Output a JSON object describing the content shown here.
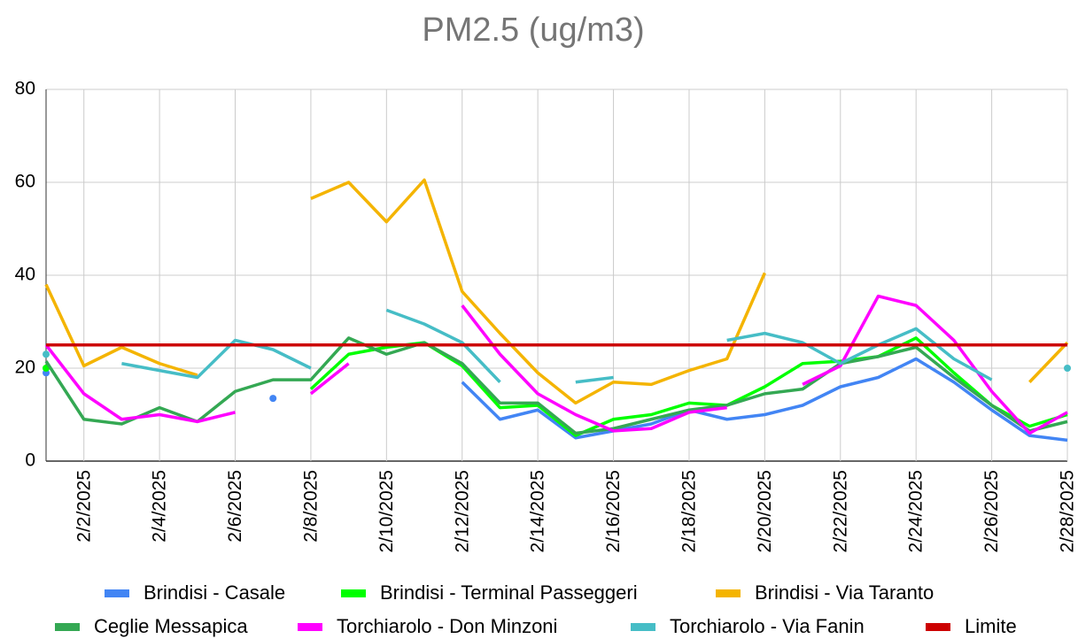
{
  "chart_data": {
    "type": "line",
    "title": "PM2.5 (ug/m3)",
    "categories": [
      null,
      "2/2/2025",
      null,
      "2/4/2025",
      null,
      "2/6/2025",
      null,
      "2/8/2025",
      null,
      "2/10/2025",
      null,
      "2/12/2025",
      null,
      "2/14/2025",
      null,
      "2/16/2025",
      null,
      "2/18/2025",
      null,
      "2/20/2025",
      null,
      "2/22/2025",
      null,
      "2/24/2025",
      null,
      "2/26/2025",
      null,
      "2/28/2025"
    ],
    "ylim": [
      0,
      80
    ],
    "yticks": [
      0,
      20,
      40,
      60,
      80
    ],
    "grid": true,
    "series": [
      {
        "name": "Brindisi - Casale",
        "color": "#4285f4",
        "values": [
          19,
          null,
          null,
          null,
          null,
          null,
          13.5,
          null,
          null,
          null,
          null,
          17,
          9,
          11,
          5,
          6.5,
          8,
          11,
          9,
          10,
          12,
          16,
          18,
          22,
          17,
          11,
          5.5,
          4.5
        ]
      },
      {
        "name": "Brindisi - Terminal Passeggeri",
        "color": "#00ff00",
        "values": [
          20,
          null,
          null,
          null,
          null,
          null,
          null,
          15.5,
          23,
          24.5,
          25.5,
          20.5,
          11.5,
          12,
          5.5,
          9,
          10,
          12.5,
          12,
          16,
          21,
          21.5,
          22.5,
          26.5,
          19,
          12,
          7.5,
          10
        ]
      },
      {
        "name": "Brindisi - Via Taranto",
        "color": "#f4b400",
        "values": [
          38,
          20.5,
          24.5,
          21,
          18.5,
          null,
          null,
          56.5,
          60,
          51.5,
          60.5,
          36.5,
          27.5,
          19,
          12.5,
          17,
          16.5,
          19.5,
          22,
          40.5,
          null,
          null,
          null,
          null,
          null,
          null,
          17,
          25.5
        ]
      },
      {
        "name": "Ceglie Messapica",
        "color": "#34a853",
        "values": [
          21.5,
          9,
          8,
          11.5,
          8.5,
          15,
          17.5,
          17.5,
          26.5,
          23,
          25.5,
          21,
          12.5,
          12.5,
          6,
          7,
          9,
          11,
          12,
          14.5,
          15.5,
          21,
          22.5,
          24.5,
          18,
          12,
          6.5,
          8.5
        ]
      },
      {
        "name": "Torchiarolo - Don Minzoni",
        "color": "#ff00ff",
        "values": [
          25,
          14.5,
          9,
          10,
          8.5,
          10.5,
          null,
          14.5,
          21,
          null,
          null,
          33.5,
          23,
          14.5,
          10,
          6.5,
          7,
          10.5,
          11.5,
          null,
          16.5,
          20.5,
          35.5,
          33.5,
          26,
          15,
          6,
          10.5
        ]
      },
      {
        "name": "Torchiarolo - Via Fanin",
        "color": "#46bdc6",
        "values": [
          23,
          null,
          21,
          19.5,
          18,
          26,
          24,
          20,
          null,
          32.5,
          29.5,
          25.5,
          17,
          null,
          17,
          18,
          null,
          null,
          26,
          27.5,
          25.5,
          21,
          25,
          28.5,
          22,
          17.5,
          null,
          20
        ]
      },
      {
        "name": "Limite",
        "color": "#cc0000",
        "values": [
          25,
          25,
          25,
          25,
          25,
          25,
          25,
          25,
          25,
          25,
          25,
          25,
          25,
          25,
          25,
          25,
          25,
          25,
          25,
          25,
          25,
          25,
          25,
          25,
          25,
          25,
          25,
          25
        ]
      }
    ]
  }
}
